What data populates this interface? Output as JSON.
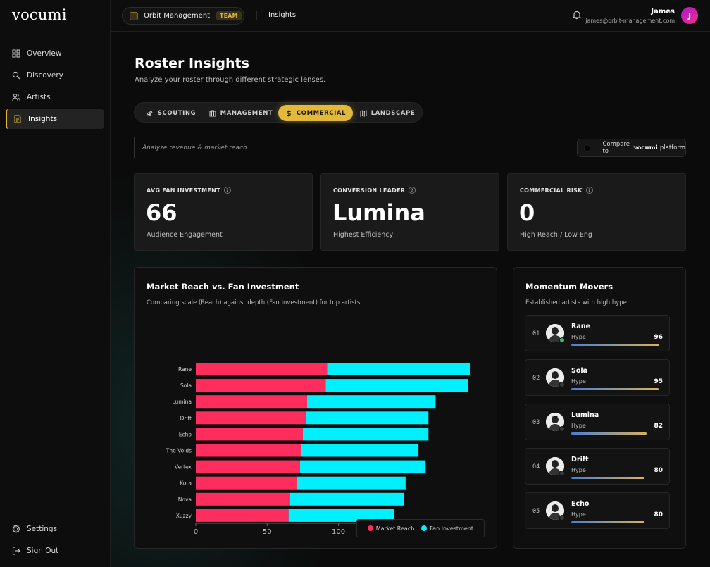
{
  "brand": {
    "logo": "vocumi"
  },
  "sidebar": {
    "items": [
      {
        "label": "Overview",
        "icon": "grid-icon"
      },
      {
        "label": "Discovery",
        "icon": "search-icon"
      },
      {
        "label": "Artists",
        "icon": "users-icon"
      },
      {
        "label": "Insights",
        "icon": "document-icon",
        "active": true
      }
    ],
    "bottom": [
      {
        "label": "Settings",
        "icon": "gear-icon"
      },
      {
        "label": "Sign Out",
        "icon": "sign-out-icon"
      }
    ]
  },
  "topbar": {
    "org_name": "Orbit Management",
    "org_badge": "TEAM",
    "breadcrumb": "Insights",
    "user_name": "James",
    "user_email": "james@orbit-management.com",
    "avatar_initial": "J"
  },
  "page": {
    "title": "Roster Insights",
    "subtitle": "Analyze your roster through different strategic lenses."
  },
  "lenses": [
    {
      "label": "SCOUTING",
      "icon": "telescope-icon"
    },
    {
      "label": "MANAGEMENT",
      "icon": "building-icon"
    },
    {
      "label": "COMMERCIAL",
      "icon": "dollar-icon",
      "active": true
    },
    {
      "label": "LANDSCAPE",
      "icon": "map-icon"
    }
  ],
  "lens_note": "Analyze revenue & market reach",
  "compare": {
    "prefix": "Compare to",
    "brand": "vocumi",
    "suffix": "platform"
  },
  "kpis": [
    {
      "label": "AVG FAN INVESTMENT",
      "value": "66",
      "sub": "Audience Engagement"
    },
    {
      "label": "CONVERSION LEADER",
      "value": "Lumina",
      "sub": "Highest Efficiency"
    },
    {
      "label": "COMMERCIAL RISK",
      "value": "0",
      "sub": "High Reach / Low Eng"
    }
  ],
  "chart_card": {
    "title": "Market Reach vs. Fan Investment",
    "subtitle": "Comparing scale (Reach) against depth (Fan Investment) for top artists."
  },
  "chart_data": {
    "type": "bar",
    "orientation": "horizontal",
    "stacked": true,
    "categories": [
      "Rane",
      "Sola",
      "Lumina",
      "Drift",
      "Echo",
      "The Voids",
      "Vertex",
      "Kora",
      "Nova",
      "Xuzzy"
    ],
    "series": [
      {
        "name": "Market Reach",
        "color": "#ff2d5e",
        "values": [
          92,
          91,
          78,
          77,
          75,
          74,
          73,
          71,
          66,
          65
        ]
      },
      {
        "name": "Fan Investment",
        "color": "#00f0ff",
        "values": [
          100,
          100,
          90,
          86,
          88,
          82,
          88,
          76,
          80,
          74
        ]
      }
    ],
    "xlim": [
      0,
      192
    ],
    "xticks": [
      "0",
      "50",
      "100",
      "150",
      "192"
    ],
    "legend": "bottom-right"
  },
  "movers_card": {
    "title": "Momentum Movers",
    "subtitle": "Established artists with high hype.",
    "hype_label": "Hype",
    "items": [
      {
        "rank": "01",
        "name": "Rane",
        "score": 96,
        "status_color": "#2fbf71"
      },
      {
        "rank": "02",
        "name": "Sola",
        "score": 95,
        "status_color": "#3a3a3a"
      },
      {
        "rank": "03",
        "name": "Lumina",
        "score": 82,
        "status_color": "#3a3a3a"
      },
      {
        "rank": "04",
        "name": "Drift",
        "score": 80,
        "status_color": "#3a3a3a"
      },
      {
        "rank": "05",
        "name": "Echo",
        "score": 80,
        "status_color": "#3a3a3a"
      }
    ]
  }
}
